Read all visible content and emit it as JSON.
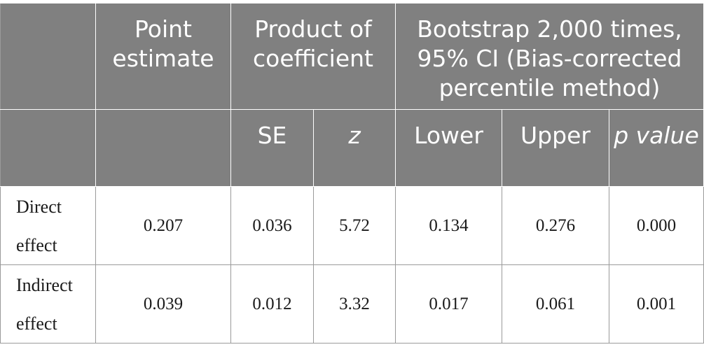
{
  "header": {
    "row1": {
      "col0": "",
      "point_estimate": "Point estimate",
      "product_of_coefficient": "Product of coefficient",
      "bootstrap": "Bootstrap 2,000 times, 95% CI (Bias-corrected percentile method)"
    },
    "row2": {
      "col0": "",
      "col1": "",
      "se": "SE",
      "z": "z",
      "lower": "Lower",
      "upper": "Upper",
      "p_value": "p value"
    }
  },
  "rows": [
    {
      "label": "Direct effect",
      "point_estimate": "0.207",
      "se": "0.036",
      "z": "5.72",
      "lower": "0.134",
      "upper": "0.276",
      "p_value": "0.000"
    },
    {
      "label": "Indirect effect",
      "point_estimate": "0.039",
      "se": "0.012",
      "z": "3.32",
      "lower": "0.017",
      "upper": "0.061",
      "p_value": "0.001"
    }
  ]
}
